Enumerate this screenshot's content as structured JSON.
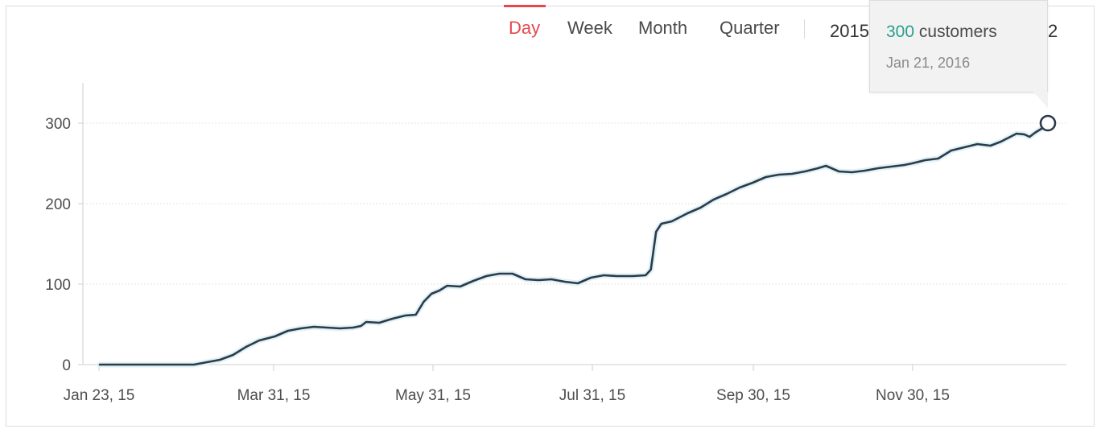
{
  "tabs": [
    {
      "label": "Day",
      "active": true
    },
    {
      "label": "Week",
      "active": false
    },
    {
      "label": "Month",
      "active": false
    },
    {
      "label": "Quarter",
      "active": false
    }
  ],
  "range": {
    "start": "2015",
    "end_fragment": "2"
  },
  "tooltip": {
    "value": "300",
    "unit": "customers",
    "date": "Jan 21, 2016"
  },
  "colors": {
    "accent": "#e5484d",
    "line": "#2d3a4a",
    "tooltip_value": "#2a9d8f",
    "grid": "#e6e6e6"
  },
  "chart_data": {
    "type": "line",
    "x_ticks": [
      "Jan 23, 15",
      "Mar 31, 15",
      "May 31, 15",
      "Jul 31, 15",
      "Sep 30, 15",
      "Nov 30, 15"
    ],
    "y_ticks": [
      0,
      100,
      200,
      300
    ],
    "ylim": [
      0,
      350
    ],
    "xlim": [
      "2015-01-23",
      "2016-01-21"
    ],
    "grid": true,
    "series": [
      {
        "values": [
          [
            "2015-01-23",
            0
          ],
          [
            "2015-02-10",
            0
          ],
          [
            "2015-02-28",
            0
          ],
          [
            "2015-03-05",
            3
          ],
          [
            "2015-03-10",
            6
          ],
          [
            "2015-03-15",
            12
          ],
          [
            "2015-03-20",
            22
          ],
          [
            "2015-03-25",
            30
          ],
          [
            "2015-03-31",
            35
          ],
          [
            "2015-04-05",
            42
          ],
          [
            "2015-04-10",
            45
          ],
          [
            "2015-04-15",
            47
          ],
          [
            "2015-04-20",
            46
          ],
          [
            "2015-04-25",
            45
          ],
          [
            "2015-04-30",
            46
          ],
          [
            "2015-05-03",
            48
          ],
          [
            "2015-05-05",
            53
          ],
          [
            "2015-05-10",
            52
          ],
          [
            "2015-05-15",
            57
          ],
          [
            "2015-05-20",
            61
          ],
          [
            "2015-05-24",
            62
          ],
          [
            "2015-05-27",
            78
          ],
          [
            "2015-05-30",
            88
          ],
          [
            "2015-06-02",
            92
          ],
          [
            "2015-06-05",
            98
          ],
          [
            "2015-06-10",
            97
          ],
          [
            "2015-06-15",
            104
          ],
          [
            "2015-06-20",
            110
          ],
          [
            "2015-06-25",
            113
          ],
          [
            "2015-06-30",
            113
          ],
          [
            "2015-07-05",
            106
          ],
          [
            "2015-07-10",
            105
          ],
          [
            "2015-07-15",
            106
          ],
          [
            "2015-07-20",
            103
          ],
          [
            "2015-07-25",
            101
          ],
          [
            "2015-07-30",
            108
          ],
          [
            "2015-08-04",
            111
          ],
          [
            "2015-08-09",
            110
          ],
          [
            "2015-08-15",
            110
          ],
          [
            "2015-08-20",
            111
          ],
          [
            "2015-08-22",
            118
          ],
          [
            "2015-08-24",
            165
          ],
          [
            "2015-08-26",
            175
          ],
          [
            "2015-08-30",
            178
          ],
          [
            "2015-09-05",
            188
          ],
          [
            "2015-09-10",
            195
          ],
          [
            "2015-09-15",
            205
          ],
          [
            "2015-09-20",
            212
          ],
          [
            "2015-09-25",
            220
          ],
          [
            "2015-09-30",
            226
          ],
          [
            "2015-10-05",
            233
          ],
          [
            "2015-10-10",
            236
          ],
          [
            "2015-10-15",
            237
          ],
          [
            "2015-10-20",
            240
          ],
          [
            "2015-10-25",
            244
          ],
          [
            "2015-10-28",
            247
          ],
          [
            "2015-11-02",
            240
          ],
          [
            "2015-11-07",
            239
          ],
          [
            "2015-11-12",
            241
          ],
          [
            "2015-11-17",
            244
          ],
          [
            "2015-11-22",
            246
          ],
          [
            "2015-11-27",
            248
          ],
          [
            "2015-11-30",
            250
          ],
          [
            "2015-12-05",
            254
          ],
          [
            "2015-12-10",
            256
          ],
          [
            "2015-12-15",
            266
          ],
          [
            "2015-12-20",
            270
          ],
          [
            "2015-12-25",
            274
          ],
          [
            "2015-12-30",
            272
          ],
          [
            "2016-01-03",
            277
          ],
          [
            "2016-01-06",
            282
          ],
          [
            "2016-01-09",
            287
          ],
          [
            "2016-01-12",
            286
          ],
          [
            "2016-01-14",
            283
          ],
          [
            "2016-01-16",
            288
          ],
          [
            "2016-01-19",
            294
          ],
          [
            "2016-01-21",
            300
          ]
        ]
      }
    ]
  }
}
